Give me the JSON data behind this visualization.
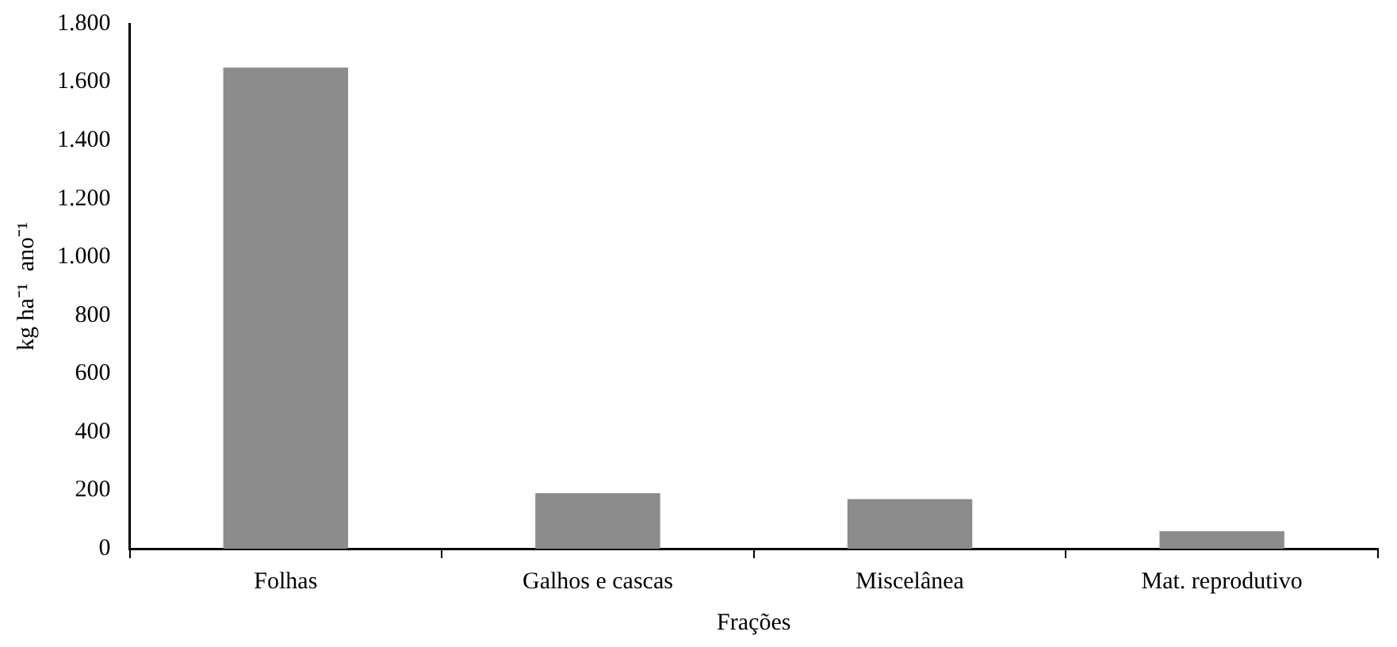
{
  "chart_data": {
    "type": "bar",
    "categories": [
      "Folhas",
      "Galhos e cascas",
      "Miscelânea",
      "Mat. reprodutivo"
    ],
    "values": [
      1650,
      190,
      170,
      60
    ],
    "color": "#8c8c8c",
    "xlabel": "Frações",
    "ylabel": "kg ha⁻¹  ano⁻¹",
    "ylim": [
      0,
      1800
    ],
    "yticks": [
      0,
      200,
      400,
      600,
      800,
      {
        "value": 1000,
        "label": "1.000"
      },
      {
        "value": 1200,
        "label": "1.200"
      },
      {
        "value": 1400,
        "label": "1.400"
      },
      {
        "value": 1600,
        "label": "1.600"
      },
      {
        "value": 1800,
        "label": "1.800"
      }
    ],
    "grid": false,
    "legend": false
  }
}
